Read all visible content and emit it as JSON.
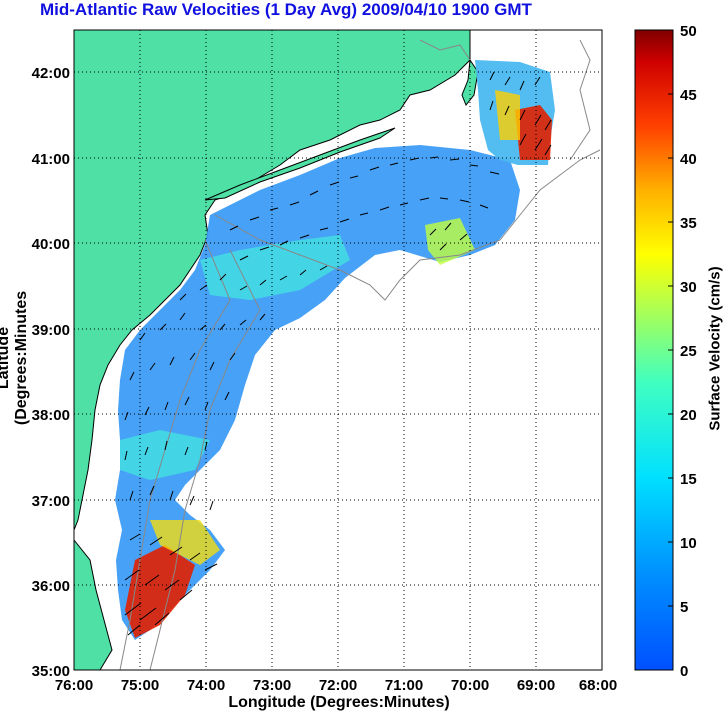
{
  "title": "Mid-Atlantic Raw Velocities (1 Day Avg) 2009/04/10 1900 GMT",
  "xlabel": "Longitude (Degrees:Minutes)",
  "ylabel": "Latitude (Degrees:Minutes",
  "colorbar": {
    "label": "Surface Velocity (cm/s)",
    "range": [
      0,
      50
    ],
    "ticks": [
      "0",
      "5",
      "10",
      "15",
      "20",
      "25",
      "30",
      "35",
      "40",
      "45",
      "50"
    ],
    "colormap": "jet"
  },
  "map": {
    "x_ticks": [
      "76:00",
      "75:00",
      "74:00",
      "73:00",
      "72:00",
      "71:00",
      "70:00",
      "69:00",
      "68:00"
    ],
    "y_ticks": [
      "35:00",
      "36:00",
      "37:00",
      "38:00",
      "39:00",
      "40:00",
      "41:00",
      "42:00"
    ],
    "lon_range": [
      -76,
      -68
    ],
    "lat_range": [
      35,
      42.5
    ],
    "land_color": "#4fe0a6",
    "grid": "dotted"
  }
}
